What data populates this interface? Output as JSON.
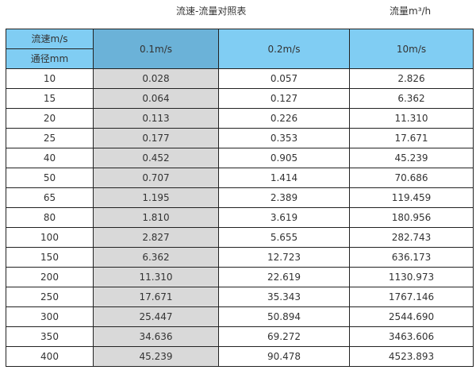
{
  "title": "流速-流量对照表",
  "unit_label": "流量m³/h",
  "header": {
    "velocity_label": "流速m/s",
    "diameter_label": "通径mm",
    "columns": [
      "0.1m/s",
      "0.2m/s",
      "10m/s"
    ]
  },
  "colors": {
    "header": "#80cdf3",
    "header_highlight": "#6bb2d8",
    "highlight_column": "#d9d9d9"
  },
  "rows": [
    [
      "10",
      "0.028",
      "0.057",
      "2.826"
    ],
    [
      "15",
      "0.064",
      "0.127",
      "6.362"
    ],
    [
      "20",
      "0.113",
      "0.226",
      "11.310"
    ],
    [
      "25",
      "0.177",
      "0.353",
      "17.671"
    ],
    [
      "40",
      "0.452",
      "0.905",
      "45.239"
    ],
    [
      "50",
      "0.707",
      "1.414",
      "70.686"
    ],
    [
      "65",
      "1.195",
      "2.389",
      "119.459"
    ],
    [
      "80",
      "1.810",
      "3.619",
      "180.956"
    ],
    [
      "100",
      "2.827",
      "5.655",
      "282.743"
    ],
    [
      "150",
      "6.362",
      "12.723",
      "636.173"
    ],
    [
      "200",
      "11.310",
      "22.619",
      "1130.973"
    ],
    [
      "250",
      "17.671",
      "35.343",
      "1767.146"
    ],
    [
      "300",
      "25.447",
      "50.894",
      "2544.690"
    ],
    [
      "350",
      "34.636",
      "69.272",
      "3463.606"
    ],
    [
      "400",
      "45.239",
      "90.478",
      "4523.893"
    ]
  ]
}
